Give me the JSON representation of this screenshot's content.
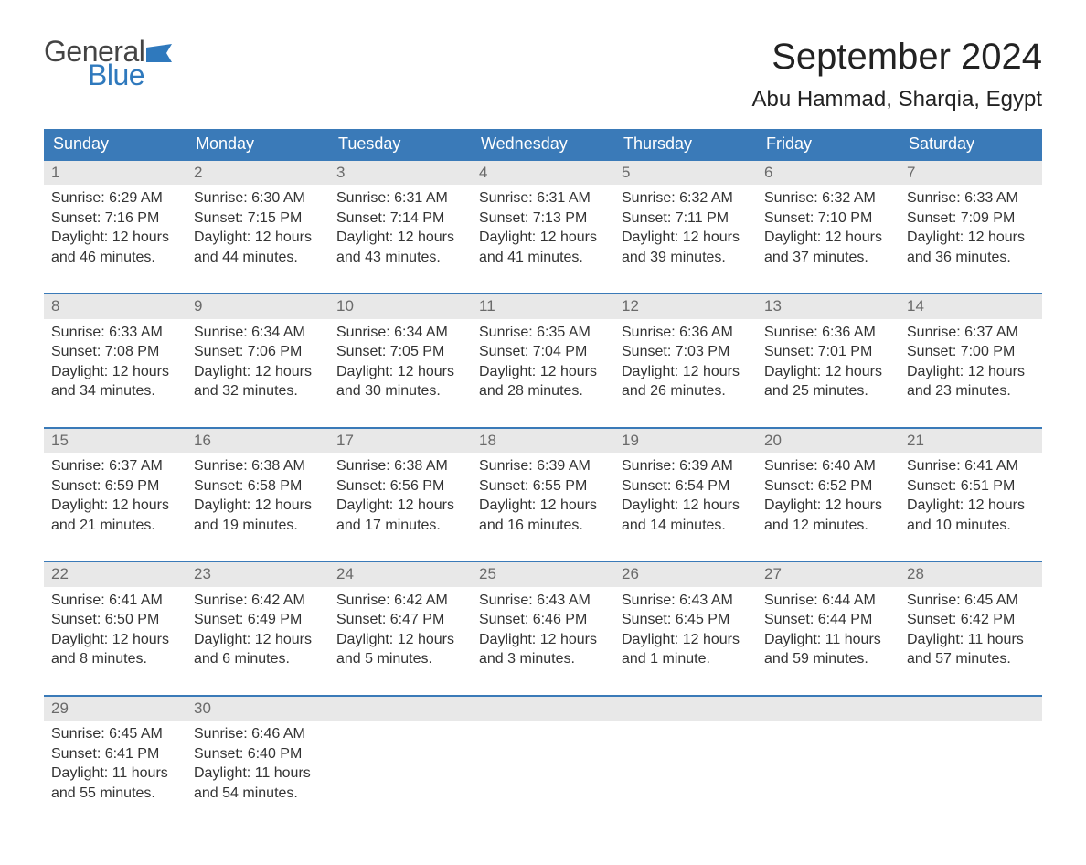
{
  "brand": {
    "word1": "General",
    "word2": "Blue",
    "word1_color": "#444444",
    "word2_color": "#2f79bd",
    "flag_color": "#2f79bd"
  },
  "title": "September 2024",
  "location": "Abu Hammad, Sharqia, Egypt",
  "colors": {
    "header_bg": "#3a7ab8",
    "header_text": "#ffffff",
    "week_border": "#3a7ab8",
    "daynum_bg": "#e8e8e8",
    "daynum_text": "#6a6a6a",
    "body_text": "#333333",
    "page_bg": "#ffffff"
  },
  "typography": {
    "title_fontsize": 40,
    "location_fontsize": 24,
    "header_fontsize": 18,
    "daynum_fontsize": 17,
    "body_fontsize": 16,
    "font_family": "Arial"
  },
  "layout": {
    "type": "table",
    "columns": 7,
    "rows": 5
  },
  "weekdays": [
    "Sunday",
    "Monday",
    "Tuesday",
    "Wednesday",
    "Thursday",
    "Friday",
    "Saturday"
  ],
  "weeks": [
    [
      {
        "n": "1",
        "sunrise": "Sunrise: 6:29 AM",
        "sunset": "Sunset: 7:16 PM",
        "day": "Daylight: 12 hours and 46 minutes."
      },
      {
        "n": "2",
        "sunrise": "Sunrise: 6:30 AM",
        "sunset": "Sunset: 7:15 PM",
        "day": "Daylight: 12 hours and 44 minutes."
      },
      {
        "n": "3",
        "sunrise": "Sunrise: 6:31 AM",
        "sunset": "Sunset: 7:14 PM",
        "day": "Daylight: 12 hours and 43 minutes."
      },
      {
        "n": "4",
        "sunrise": "Sunrise: 6:31 AM",
        "sunset": "Sunset: 7:13 PM",
        "day": "Daylight: 12 hours and 41 minutes."
      },
      {
        "n": "5",
        "sunrise": "Sunrise: 6:32 AM",
        "sunset": "Sunset: 7:11 PM",
        "day": "Daylight: 12 hours and 39 minutes."
      },
      {
        "n": "6",
        "sunrise": "Sunrise: 6:32 AM",
        "sunset": "Sunset: 7:10 PM",
        "day": "Daylight: 12 hours and 37 minutes."
      },
      {
        "n": "7",
        "sunrise": "Sunrise: 6:33 AM",
        "sunset": "Sunset: 7:09 PM",
        "day": "Daylight: 12 hours and 36 minutes."
      }
    ],
    [
      {
        "n": "8",
        "sunrise": "Sunrise: 6:33 AM",
        "sunset": "Sunset: 7:08 PM",
        "day": "Daylight: 12 hours and 34 minutes."
      },
      {
        "n": "9",
        "sunrise": "Sunrise: 6:34 AM",
        "sunset": "Sunset: 7:06 PM",
        "day": "Daylight: 12 hours and 32 minutes."
      },
      {
        "n": "10",
        "sunrise": "Sunrise: 6:34 AM",
        "sunset": "Sunset: 7:05 PM",
        "day": "Daylight: 12 hours and 30 minutes."
      },
      {
        "n": "11",
        "sunrise": "Sunrise: 6:35 AM",
        "sunset": "Sunset: 7:04 PM",
        "day": "Daylight: 12 hours and 28 minutes."
      },
      {
        "n": "12",
        "sunrise": "Sunrise: 6:36 AM",
        "sunset": "Sunset: 7:03 PM",
        "day": "Daylight: 12 hours and 26 minutes."
      },
      {
        "n": "13",
        "sunrise": "Sunrise: 6:36 AM",
        "sunset": "Sunset: 7:01 PM",
        "day": "Daylight: 12 hours and 25 minutes."
      },
      {
        "n": "14",
        "sunrise": "Sunrise: 6:37 AM",
        "sunset": "Sunset: 7:00 PM",
        "day": "Daylight: 12 hours and 23 minutes."
      }
    ],
    [
      {
        "n": "15",
        "sunrise": "Sunrise: 6:37 AM",
        "sunset": "Sunset: 6:59 PM",
        "day": "Daylight: 12 hours and 21 minutes."
      },
      {
        "n": "16",
        "sunrise": "Sunrise: 6:38 AM",
        "sunset": "Sunset: 6:58 PM",
        "day": "Daylight: 12 hours and 19 minutes."
      },
      {
        "n": "17",
        "sunrise": "Sunrise: 6:38 AM",
        "sunset": "Sunset: 6:56 PM",
        "day": "Daylight: 12 hours and 17 minutes."
      },
      {
        "n": "18",
        "sunrise": "Sunrise: 6:39 AM",
        "sunset": "Sunset: 6:55 PM",
        "day": "Daylight: 12 hours and 16 minutes."
      },
      {
        "n": "19",
        "sunrise": "Sunrise: 6:39 AM",
        "sunset": "Sunset: 6:54 PM",
        "day": "Daylight: 12 hours and 14 minutes."
      },
      {
        "n": "20",
        "sunrise": "Sunrise: 6:40 AM",
        "sunset": "Sunset: 6:52 PM",
        "day": "Daylight: 12 hours and 12 minutes."
      },
      {
        "n": "21",
        "sunrise": "Sunrise: 6:41 AM",
        "sunset": "Sunset: 6:51 PM",
        "day": "Daylight: 12 hours and 10 minutes."
      }
    ],
    [
      {
        "n": "22",
        "sunrise": "Sunrise: 6:41 AM",
        "sunset": "Sunset: 6:50 PM",
        "day": "Daylight: 12 hours and 8 minutes."
      },
      {
        "n": "23",
        "sunrise": "Sunrise: 6:42 AM",
        "sunset": "Sunset: 6:49 PM",
        "day": "Daylight: 12 hours and 6 minutes."
      },
      {
        "n": "24",
        "sunrise": "Sunrise: 6:42 AM",
        "sunset": "Sunset: 6:47 PM",
        "day": "Daylight: 12 hours and 5 minutes."
      },
      {
        "n": "25",
        "sunrise": "Sunrise: 6:43 AM",
        "sunset": "Sunset: 6:46 PM",
        "day": "Daylight: 12 hours and 3 minutes."
      },
      {
        "n": "26",
        "sunrise": "Sunrise: 6:43 AM",
        "sunset": "Sunset: 6:45 PM",
        "day": "Daylight: 12 hours and 1 minute."
      },
      {
        "n": "27",
        "sunrise": "Sunrise: 6:44 AM",
        "sunset": "Sunset: 6:44 PM",
        "day": "Daylight: 11 hours and 59 minutes."
      },
      {
        "n": "28",
        "sunrise": "Sunrise: 6:45 AM",
        "sunset": "Sunset: 6:42 PM",
        "day": "Daylight: 11 hours and 57 minutes."
      }
    ],
    [
      {
        "n": "29",
        "sunrise": "Sunrise: 6:45 AM",
        "sunset": "Sunset: 6:41 PM",
        "day": "Daylight: 11 hours and 55 minutes."
      },
      {
        "n": "30",
        "sunrise": "Sunrise: 6:46 AM",
        "sunset": "Sunset: 6:40 PM",
        "day": "Daylight: 11 hours and 54 minutes."
      },
      null,
      null,
      null,
      null,
      null
    ]
  ]
}
